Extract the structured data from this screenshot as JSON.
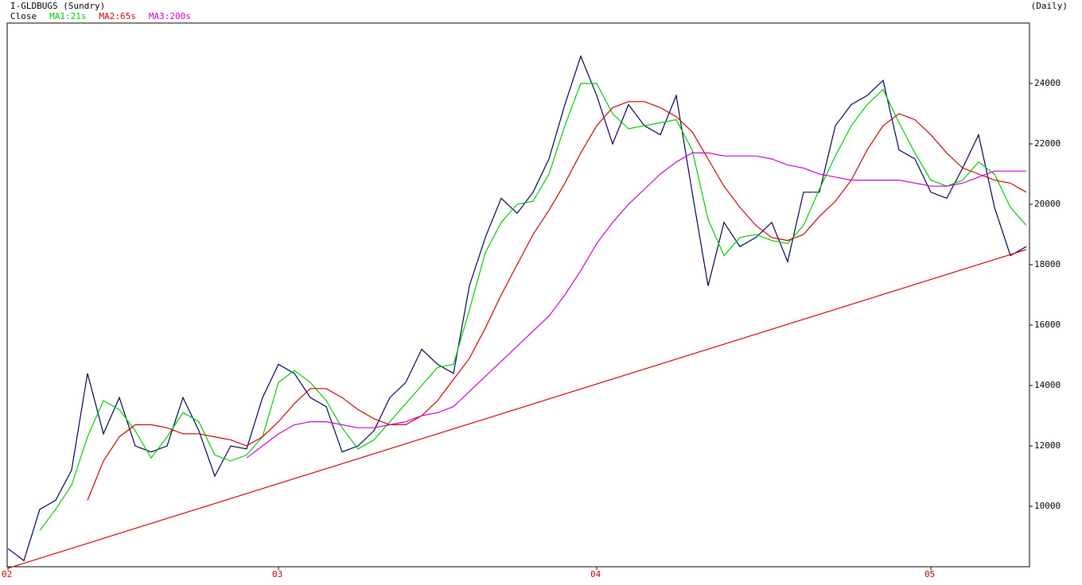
{
  "chart_data": {
    "type": "line",
    "title": "I-GLDBUGS (Sundry)",
    "subtitle": "(Daily)",
    "categories": [
      "02",
      null,
      null,
      null,
      null,
      null,
      null,
      null,
      null,
      null,
      null,
      null,
      null,
      null,
      null,
      null,
      null,
      "03",
      null,
      null,
      null,
      null,
      null,
      null,
      null,
      null,
      null,
      null,
      null,
      null,
      null,
      null,
      null,
      null,
      null,
      null,
      null,
      "04",
      null,
      null,
      null,
      null,
      null,
      null,
      null,
      null,
      null,
      null,
      null,
      null,
      null,
      null,
      null,
      null,
      null,
      null,
      null,
      null,
      "05",
      null,
      null,
      null,
      null,
      null,
      null
    ],
    "series": [
      {
        "name": "Close",
        "color": "#00005a",
        "values": [
          8600,
          8200,
          9900,
          10200,
          11200,
          14400,
          12400,
          13600,
          12000,
          11800,
          12000,
          13600,
          12500,
          11000,
          12000,
          11900,
          13600,
          14700,
          14400,
          13600,
          13300,
          11800,
          12000,
          12500,
          13600,
          14100,
          15200,
          14700,
          14400,
          17300,
          18900,
          20200,
          19700,
          20400,
          21500,
          23300,
          24900,
          23600,
          22000,
          23300,
          22600,
          22300,
          23600,
          20400,
          17300,
          19400,
          18600,
          18900,
          19400,
          18100,
          20400,
          20400,
          22600,
          23300,
          23600,
          24100,
          21800,
          21500,
          20400,
          20200,
          21200,
          22300,
          19900,
          18300,
          18600
        ]
      },
      {
        "name": "MA1:21s",
        "color": "#00cc00",
        "values": [
          null,
          null,
          9200,
          9900,
          10700,
          12300,
          13500,
          13200,
          12500,
          11600,
          12300,
          13100,
          12800,
          11700,
          11500,
          11700,
          12300,
          14100,
          14500,
          14100,
          13500,
          12600,
          11900,
          12200,
          12800,
          13400,
          14000,
          14600,
          14700,
          16500,
          18400,
          19400,
          20000,
          20100,
          21000,
          22600,
          24000,
          24000,
          23000,
          22500,
          22600,
          22700,
          22800,
          21800,
          19500,
          18300,
          18900,
          19000,
          18800,
          18700,
          19300,
          20500,
          21600,
          22600,
          23300,
          23800,
          22700,
          21700,
          20800,
          20600,
          20800,
          21400,
          21000,
          19900,
          19300
        ]
      },
      {
        "name": "MA2:65s",
        "color": "#cc0000",
        "values": [
          null,
          null,
          null,
          null,
          null,
          10200,
          11500,
          12300,
          12700,
          12700,
          12600,
          12400,
          12400,
          12300,
          12200,
          12000,
          12300,
          12800,
          13400,
          13900,
          13900,
          13600,
          13200,
          12900,
          12700,
          12700,
          13000,
          13500,
          14200,
          14900,
          15900,
          17000,
          18000,
          19000,
          19800,
          20700,
          21700,
          22600,
          23200,
          23400,
          23400,
          23200,
          22900,
          22400,
          21500,
          20600,
          19900,
          19300,
          18900,
          18800,
          19000,
          19600,
          20100,
          20800,
          21800,
          22600,
          23000,
          22800,
          22300,
          21700,
          21200,
          21000,
          20800,
          20700,
          20400
        ]
      },
      {
        "name": "MA3:200s",
        "color": "#cc00cc",
        "values": [
          null,
          null,
          null,
          null,
          null,
          null,
          null,
          null,
          null,
          null,
          null,
          null,
          null,
          null,
          null,
          11600,
          12000,
          12400,
          12700,
          12800,
          12800,
          12700,
          12600,
          12600,
          12700,
          12800,
          13000,
          13100,
          13300,
          13800,
          14300,
          14800,
          15300,
          15800,
          16300,
          17000,
          17800,
          18700,
          19400,
          20000,
          20500,
          21000,
          21400,
          21700,
          21700,
          21600,
          21600,
          21600,
          21500,
          21300,
          21200,
          21000,
          20900,
          20800,
          20800,
          20800,
          20800,
          20700,
          20600,
          20600,
          20700,
          20900,
          21100,
          21100,
          21100
        ]
      }
    ],
    "trendline": {
      "color": "#dd0000",
      "values": [
        7950,
        18500
      ]
    },
    "ylim": [
      8000,
      26000
    ],
    "yticks": [
      10000,
      12000,
      14000,
      16000,
      18000,
      20000,
      22000,
      24000
    ],
    "grid": false
  }
}
